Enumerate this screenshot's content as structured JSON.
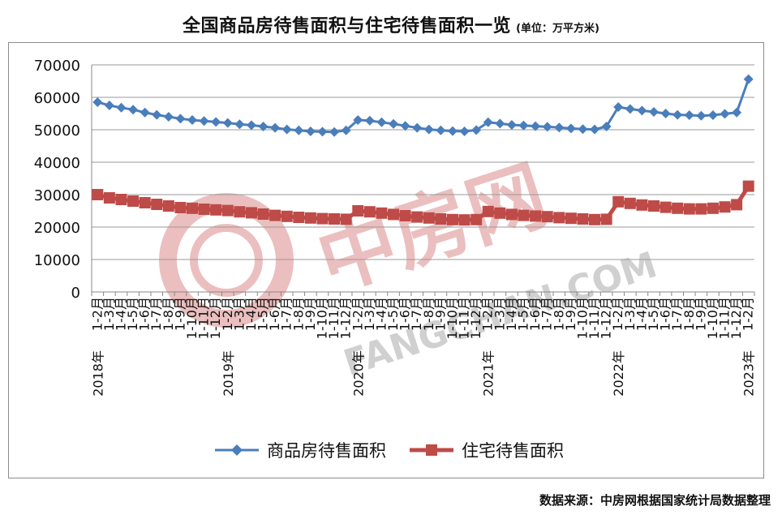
{
  "title": "全国商品房待售面积与住宅待售面积一览",
  "unit": "(单位：万平方米)",
  "source": "数据来源：中房网根据国家统计局数据整理",
  "watermark": {
    "logo_text": "中房网",
    "url_text": "FANGCHAN.COM"
  },
  "colors": {
    "series1": "#4a7ebb",
    "series2": "#be4b48",
    "watermark": "#e8b4b4",
    "watermark_text": "#c8c8c8"
  },
  "chart_data": {
    "type": "line",
    "ylim": [
      0,
      70000
    ],
    "yticks": [
      "0",
      "10000",
      "20000",
      "30000",
      "40000",
      "50000",
      "60000",
      "70000"
    ],
    "grid": true,
    "legend_position": "bottom",
    "x": [
      "2018年1-2月",
      "1-3月",
      "1-4月",
      "1-5月",
      "1-6月",
      "1-7月",
      "1-8月",
      "1-9月",
      "1-10月",
      "1-11月",
      "1-12月",
      "2019年1-2月",
      "1-3月",
      "1-4月",
      "1-5月",
      "1-6月",
      "1-7月",
      "1-8月",
      "1-9月",
      "1-10月",
      "1-11月",
      "1-12月",
      "2020年1-2月",
      "1-3月",
      "1-4月",
      "1-5月",
      "1-6月",
      "1-7月",
      "1-8月",
      "1-9月",
      "1-10月",
      "1-11月",
      "1-12月",
      "2021年1-2月",
      "1-3月",
      "1-4月",
      "1-5月",
      "1-6月",
      "1-7月",
      "1-8月",
      "1-9月",
      "1-10月",
      "1-11月",
      "1-12月",
      "2022年1-2月",
      "1-3月",
      "1-4月",
      "1-5月",
      "1-6月",
      "1-7月",
      "1-8月",
      "1-9月",
      "1-10月",
      "1-11月",
      "1-12月",
      "2023年1-2月"
    ],
    "year_labels": [
      {
        "text": "2018年",
        "index": 0
      },
      {
        "text": "2019年",
        "index": 11
      },
      {
        "text": "2020年",
        "index": 22
      },
      {
        "text": "2021年",
        "index": 33
      },
      {
        "text": "2022年",
        "index": 44
      },
      {
        "text": "2023年",
        "index": 55
      }
    ],
    "month_labels": [
      "1-2月",
      "1-3月",
      "1-4月",
      "1-5月",
      "1-6月",
      "1-7月",
      "1-8月",
      "1-9月",
      "1-10月",
      "1-11月",
      "1-12月",
      "1-2月",
      "1-3月",
      "1-4月",
      "1-5月",
      "1-6月",
      "1-7月",
      "1-8月",
      "1-9月",
      "1-10月",
      "1-11月",
      "1-12月",
      "1-2月",
      "1-3月",
      "1-4月",
      "1-5月",
      "1-6月",
      "1-7月",
      "1-8月",
      "1-9月",
      "1-10月",
      "1-11月",
      "1-12月",
      "1-2月",
      "1-3月",
      "1-4月",
      "1-5月",
      "1-6月",
      "1-7月",
      "1-8月",
      "1-9月",
      "1-10月",
      "1-11月",
      "1-12月",
      "1-2月",
      "1-3月",
      "1-4月",
      "1-5月",
      "1-6月",
      "1-7月",
      "1-8月",
      "1-9月",
      "1-10月",
      "1-11月",
      "1-12月",
      "1-2月"
    ],
    "series": [
      {
        "name": "商品房待售面积",
        "marker": "diamond",
        "values": [
          58500,
          57500,
          56800,
          56200,
          55300,
          54600,
          54000,
          53400,
          53000,
          52700,
          52400,
          52100,
          51700,
          51400,
          51000,
          50600,
          50100,
          49800,
          49500,
          49400,
          49300,
          49800,
          53000,
          52800,
          52300,
          51800,
          51200,
          50600,
          50100,
          49800,
          49600,
          49500,
          49900,
          52300,
          51900,
          51500,
          51300,
          51100,
          50900,
          50700,
          50400,
          50200,
          50100,
          51000,
          57000,
          56400,
          55900,
          55500,
          55000,
          54600,
          54500,
          54300,
          54500,
          54900,
          55300,
          65600
        ]
      },
      {
        "name": "住宅待售面积",
        "marker": "square",
        "values": [
          30000,
          29000,
          28500,
          28000,
          27500,
          27000,
          26500,
          26000,
          25800,
          25500,
          25300,
          25100,
          24700,
          24400,
          24000,
          23600,
          23300,
          23000,
          22800,
          22600,
          22500,
          22400,
          25000,
          24700,
          24300,
          23900,
          23500,
          23100,
          22800,
          22500,
          22300,
          22200,
          22300,
          24800,
          24300,
          23900,
          23600,
          23400,
          23200,
          22900,
          22700,
          22500,
          22300,
          22400,
          27800,
          27300,
          26800,
          26500,
          26100,
          25800,
          25600,
          25600,
          25800,
          26200,
          26900,
          32600
        ]
      }
    ]
  }
}
